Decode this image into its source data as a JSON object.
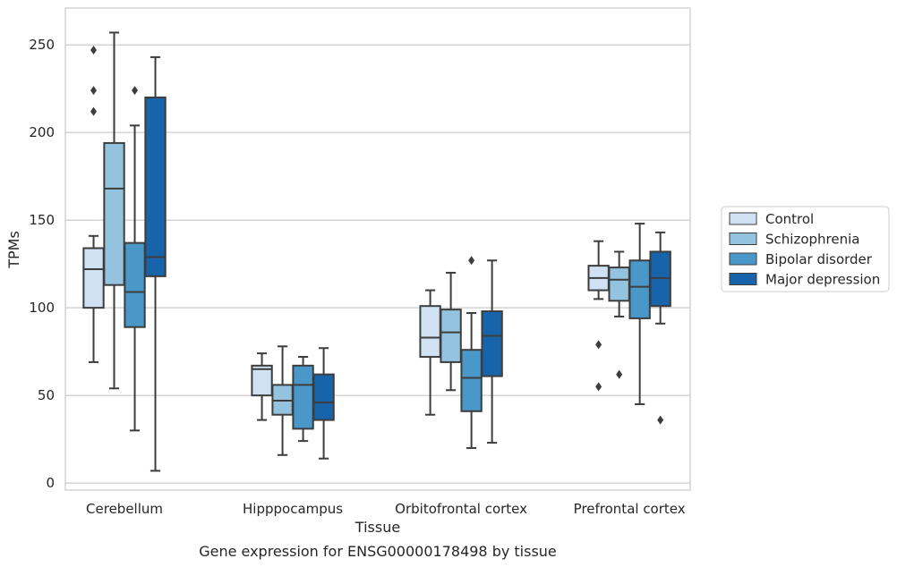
{
  "chart_data": {
    "type": "boxplot",
    "caption": "Gene expression for ENSG00000178498 by tissue",
    "xlabel": "Tissue",
    "ylabel": "TPMs",
    "ylim": [
      -4,
      271
    ],
    "yticks": [
      0,
      50,
      100,
      150,
      200,
      250
    ],
    "grid": "horizontal",
    "legend_position": "right",
    "categories": [
      "Cerebellum",
      "Hipppocampus",
      "Orbitofrontal cortex",
      "Prefrontal cortex"
    ],
    "series": [
      {
        "name": "Control",
        "color": "#cfe1f2",
        "boxes": [
          {
            "q1": 100,
            "median": 122,
            "q3": 134,
            "whisker_low": 69,
            "whisker_high": 141,
            "outliers": [
              247,
              224,
              212
            ]
          },
          {
            "q1": 50,
            "median": 65,
            "q3": 67,
            "whisker_low": 36,
            "whisker_high": 74,
            "outliers": []
          },
          {
            "q1": 72,
            "median": 83,
            "q3": 101,
            "whisker_low": 39,
            "whisker_high": 110,
            "outliers": []
          },
          {
            "q1": 110,
            "median": 117,
            "q3": 124,
            "whisker_low": 105,
            "whisker_high": 138,
            "outliers": [
              79,
              55
            ]
          }
        ]
      },
      {
        "name": "Schizophrenia",
        "color": "#93c3df",
        "boxes": [
          {
            "q1": 113,
            "median": 168,
            "q3": 194,
            "whisker_low": 54,
            "whisker_high": 257,
            "outliers": []
          },
          {
            "q1": 39,
            "median": 47,
            "q3": 56,
            "whisker_low": 16,
            "whisker_high": 78,
            "outliers": []
          },
          {
            "q1": 69,
            "median": 86,
            "q3": 99,
            "whisker_low": 53,
            "whisker_high": 120,
            "outliers": []
          },
          {
            "q1": 104,
            "median": 116,
            "q3": 123,
            "whisker_low": 95,
            "whisker_high": 132,
            "outliers": [
              62
            ]
          }
        ]
      },
      {
        "name": "Bipolar disorder",
        "color": "#4a98c9",
        "boxes": [
          {
            "q1": 89,
            "median": 109,
            "q3": 137,
            "whisker_low": 30,
            "whisker_high": 204,
            "outliers": [
              224
            ]
          },
          {
            "q1": 31,
            "median": 56,
            "q3": 67,
            "whisker_low": 24,
            "whisker_high": 72,
            "outliers": []
          },
          {
            "q1": 41,
            "median": 60,
            "q3": 76,
            "whisker_low": 20,
            "whisker_high": 97,
            "outliers": [
              127
            ]
          },
          {
            "q1": 94,
            "median": 112,
            "q3": 127,
            "whisker_low": 45,
            "whisker_high": 148,
            "outliers": []
          }
        ]
      },
      {
        "name": "Major depression",
        "color": "#1764ab",
        "boxes": [
          {
            "q1": 118,
            "median": 129,
            "q3": 220,
            "whisker_low": 7,
            "whisker_high": 243,
            "outliers": []
          },
          {
            "q1": 36,
            "median": 46,
            "q3": 62,
            "whisker_low": 14,
            "whisker_high": 77,
            "outliers": []
          },
          {
            "q1": 61,
            "median": 84,
            "q3": 98,
            "whisker_low": 23,
            "whisker_high": 127,
            "outliers": []
          },
          {
            "q1": 101,
            "median": 117,
            "q3": 132,
            "whisker_low": 91,
            "whisker_high": 143,
            "outliers": [
              36
            ]
          }
        ]
      }
    ]
  },
  "colors": {
    "edge": "#3d3d3d",
    "grid": "#cccccc",
    "frame": "#cccccc",
    "text": "#262626"
  }
}
